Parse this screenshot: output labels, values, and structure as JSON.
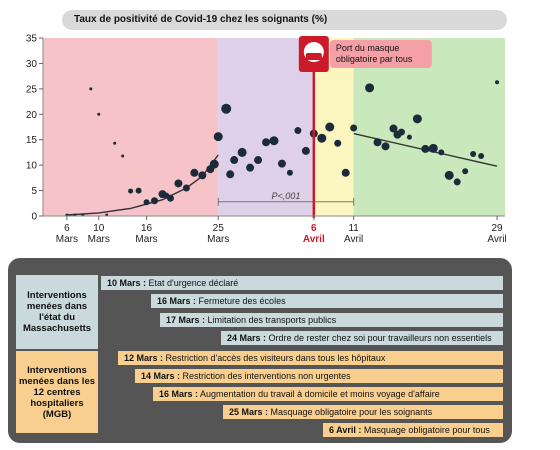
{
  "chart_data": {
    "type": "scatter",
    "title": "Taux de positivité de Covid-19 chez les soignants (%)",
    "ylim": [
      0,
      35
    ],
    "yticks": [
      0,
      5,
      10,
      15,
      20,
      25,
      30,
      35
    ],
    "xticks": [
      {
        "day": 6,
        "line1": "6",
        "line2": "Mars"
      },
      {
        "day": 10,
        "line1": "10",
        "line2": "Mars"
      },
      {
        "day": 16,
        "line1": "16",
        "line2": "Mars"
      },
      {
        "day": 25,
        "line1": "25",
        "line2": "Mars"
      },
      {
        "day": 37,
        "line1": "6",
        "line2": "Avril"
      },
      {
        "day": 42,
        "line1": "11",
        "line2": "Avril"
      },
      {
        "day": 60,
        "line1": "29",
        "line2": "Avril"
      }
    ],
    "phases": [
      {
        "from": 3,
        "to": 25,
        "color": "#f6c3c8"
      },
      {
        "from": 25,
        "to": 37,
        "color": "#ddd0e8"
      },
      {
        "from": 37,
        "to": 42,
        "color": "#fbf6c0"
      },
      {
        "from": 42,
        "to": 61,
        "color": "#c9e8bb"
      }
    ],
    "marker_day": 37,
    "annotation": "Port du masque obligatoire par tous",
    "pvalue_label": "P<,001",
    "pvalue_range": [
      25,
      42
    ],
    "pvalue_y": 2.8,
    "points": [
      {
        "day": 6,
        "y": 0.2,
        "r": 1.5
      },
      {
        "day": 7,
        "y": 0.2,
        "r": 1.5
      },
      {
        "day": 8,
        "y": 0.2,
        "r": 1.5
      },
      {
        "day": 9,
        "y": 25,
        "r": 1.5
      },
      {
        "day": 10,
        "y": 20,
        "r": 1.5
      },
      {
        "day": 11,
        "y": 0.2,
        "r": 1.5
      },
      {
        "day": 12,
        "y": 14.3,
        "r": 1.5
      },
      {
        "day": 13,
        "y": 11.8,
        "r": 1.5
      },
      {
        "day": 14,
        "y": 4.9,
        "r": 2.5
      },
      {
        "day": 15,
        "y": 5,
        "r": 3
      },
      {
        "day": 16,
        "y": 2.7,
        "r": 3
      },
      {
        "day": 17,
        "y": 3,
        "r": 3.5
      },
      {
        "day": 18,
        "y": 4.3,
        "r": 4
      },
      {
        "day": 18.5,
        "y": 4,
        "r": 3
      },
      {
        "day": 19,
        "y": 3.5,
        "r": 3.5
      },
      {
        "day": 20,
        "y": 6.4,
        "r": 4
      },
      {
        "day": 21,
        "y": 5.5,
        "r": 3.5
      },
      {
        "day": 22,
        "y": 8.5,
        "r": 4
      },
      {
        "day": 23,
        "y": 8,
        "r": 4
      },
      {
        "day": 24,
        "y": 9.2,
        "r": 4
      },
      {
        "day": 24.5,
        "y": 10.2,
        "r": 4.5
      },
      {
        "day": 25,
        "y": 15.6,
        "r": 4.5
      },
      {
        "day": 26,
        "y": 21.1,
        "r": 5
      },
      {
        "day": 26.5,
        "y": 8.2,
        "r": 4
      },
      {
        "day": 27,
        "y": 11,
        "r": 4
      },
      {
        "day": 28,
        "y": 12.5,
        "r": 4.5
      },
      {
        "day": 29,
        "y": 9.5,
        "r": 4
      },
      {
        "day": 30,
        "y": 11,
        "r": 4
      },
      {
        "day": 31,
        "y": 14.5,
        "r": 4
      },
      {
        "day": 32,
        "y": 14.8,
        "r": 4.5
      },
      {
        "day": 33,
        "y": 10.3,
        "r": 4
      },
      {
        "day": 34,
        "y": 8.5,
        "r": 3
      },
      {
        "day": 35,
        "y": 16.8,
        "r": 3.5
      },
      {
        "day": 36,
        "y": 12.8,
        "r": 4
      },
      {
        "day": 37,
        "y": 16.2,
        "r": 4
      },
      {
        "day": 38,
        "y": 15.3,
        "r": 4.5
      },
      {
        "day": 39,
        "y": 17.5,
        "r": 4.5
      },
      {
        "day": 40,
        "y": 14.3,
        "r": 3.5
      },
      {
        "day": 41,
        "y": 8.5,
        "r": 4
      },
      {
        "day": 42,
        "y": 17.3,
        "r": 3.5
      },
      {
        "day": 44,
        "y": 25.2,
        "r": 4.5
      },
      {
        "day": 45,
        "y": 14.5,
        "r": 4
      },
      {
        "day": 46,
        "y": 13.7,
        "r": 4
      },
      {
        "day": 47,
        "y": 17.2,
        "r": 4
      },
      {
        "day": 47.5,
        "y": 16,
        "r": 4
      },
      {
        "day": 48,
        "y": 16.5,
        "r": 3.5
      },
      {
        "day": 49,
        "y": 15.5,
        "r": 2.5
      },
      {
        "day": 50,
        "y": 19.1,
        "r": 4.5
      },
      {
        "day": 51,
        "y": 13.2,
        "r": 4
      },
      {
        "day": 52,
        "y": 13.3,
        "r": 4.5
      },
      {
        "day": 53,
        "y": 12.5,
        "r": 3
      },
      {
        "day": 54,
        "y": 8,
        "r": 4.5
      },
      {
        "day": 55,
        "y": 6.7,
        "r": 3.5
      },
      {
        "day": 56,
        "y": 8.8,
        "r": 3
      },
      {
        "day": 57,
        "y": 12.2,
        "r": 3
      },
      {
        "day": 58,
        "y": 11.8,
        "r": 3
      },
      {
        "day": 60,
        "y": 26.3,
        "r": 2
      }
    ],
    "fit_early": [
      [
        6,
        0.2
      ],
      [
        10,
        0.6
      ],
      [
        14,
        1.5
      ],
      [
        18,
        3.2
      ],
      [
        21,
        5.5
      ],
      [
        23,
        7.8
      ],
      [
        25,
        12
      ]
    ],
    "fit_late": [
      [
        42,
        16.2
      ],
      [
        60,
        9.8
      ]
    ]
  },
  "interventions": {
    "ma_label": "Interventions menées dans l'état du Massachusetts",
    "mgb_label": "Interventions menées dans les 12 centres hospitaliers (MGB)",
    "ma": [
      {
        "date": "10 Mars :",
        "text": " Etat d'urgence déclaré"
      },
      {
        "date": "16 Mars :",
        "text": " Fermeture des écoles"
      },
      {
        "date": "17 Mars :",
        "text": " Limitation des transports publics"
      },
      {
        "date": "24 Mars :",
        "text": " Ordre de rester chez soi pour travailleurs non essentiels"
      }
    ],
    "mgb": [
      {
        "date": "12 Mars :",
        "text": " Restriction d'accès des visiteurs dans tous les hôpitaux"
      },
      {
        "date": "14 Mars :",
        "text": " Restriction des interventions non urgentes"
      },
      {
        "date": "16 Mars :",
        "text": " Augmentation du travail à domicile et moins voyage d'affaire"
      },
      {
        "date": "25 Mars :",
        "text": " Masquage obligatoire pour les soignants"
      },
      {
        "date": "6 Avril :",
        "text": " Masquage obligatoire pour tous"
      }
    ]
  }
}
